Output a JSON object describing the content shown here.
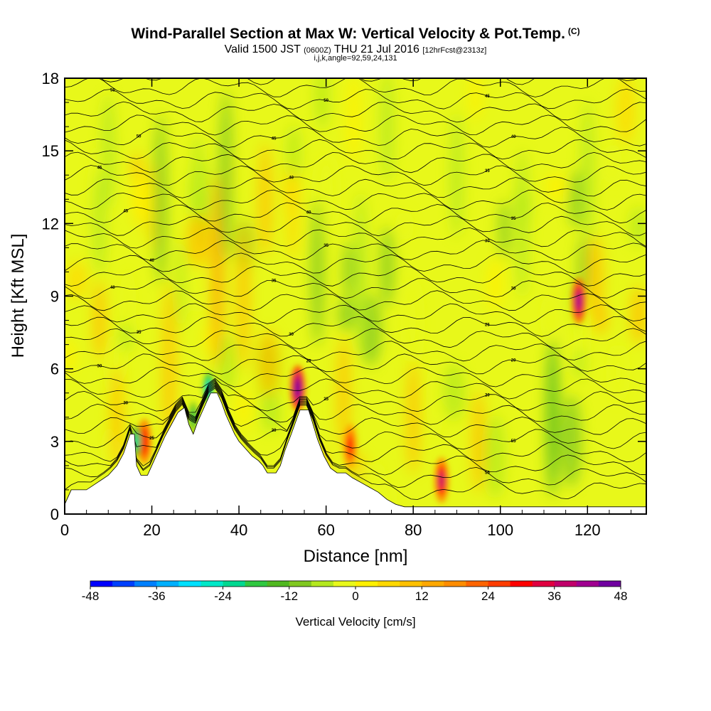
{
  "header": {
    "title": "Wind-Parallel Section at Max W: Vertical Velocity & Pot.Temp.",
    "title_tag": "(C)",
    "valid_main": "Valid 1500 JST",
    "valid_utc": "(0600Z)",
    "valid_date": "THU 21 Jul 2016",
    "forecast": "[12hrFcst@2313z]",
    "indices": "i,j,k,angle=92,59,24,131"
  },
  "chart_data": {
    "type": "heatmap",
    "xlabel": "Distance [nm]",
    "ylabel": "Height [Kft MSL]",
    "xlim": [
      0,
      133.5
    ],
    "ylim": [
      0,
      18
    ],
    "xticks": [
      0,
      20,
      40,
      60,
      80,
      100,
      120
    ],
    "yticks": [
      0,
      3,
      6,
      9,
      12,
      15,
      18
    ],
    "grid": false,
    "background_field": "Vertical Velocity [cm/s]",
    "colorbar": {
      "label": "Vertical Velocity [cm/s]",
      "ticks": [
        -48,
        -36,
        -24,
        -12,
        0,
        12,
        24,
        36,
        48
      ],
      "placement": "bottom",
      "colors": [
        "#0000ff",
        "#0040ff",
        "#0080ff",
        "#00b0ff",
        "#00e0ff",
        "#00e8c8",
        "#00d890",
        "#30c840",
        "#50b820",
        "#80c820",
        "#b4e81e",
        "#e8f81a",
        "#fff000",
        "#ffd800",
        "#ffc000",
        "#ffa800",
        "#ff8c00",
        "#ff6400",
        "#ff3c00",
        "#ff0000",
        "#e00040",
        "#c0006a",
        "#a00090",
        "#7000a0"
      ]
    },
    "terrain": [
      [
        0,
        0.4
      ],
      [
        1.5,
        1.0
      ],
      [
        5,
        1.0
      ],
      [
        7.5,
        1.3
      ],
      [
        10,
        1.6
      ],
      [
        12,
        2.0
      ],
      [
        13.5,
        2.5
      ],
      [
        15,
        3.3
      ],
      [
        16,
        3.3
      ],
      [
        16.5,
        2.0
      ],
      [
        17.5,
        1.6
      ],
      [
        19,
        1.6
      ],
      [
        20,
        2.0
      ],
      [
        21.5,
        2.6
      ],
      [
        23,
        3.2
      ],
      [
        24.5,
        3.7
      ],
      [
        26,
        4.2
      ],
      [
        27.5,
        4.4
      ],
      [
        28.5,
        3.7
      ],
      [
        29.5,
        3.3
      ],
      [
        30.5,
        3.8
      ],
      [
        31.5,
        4.2
      ],
      [
        32.5,
        4.6
      ],
      [
        33.5,
        5.0
      ],
      [
        35,
        5.0
      ],
      [
        36,
        4.6
      ],
      [
        37,
        4.1
      ],
      [
        38,
        3.7
      ],
      [
        39,
        3.3
      ],
      [
        40,
        3.0
      ],
      [
        41.5,
        2.7
      ],
      [
        43,
        2.4
      ],
      [
        44.5,
        2.2
      ],
      [
        45.5,
        2.0
      ],
      [
        46.5,
        1.7
      ],
      [
        48.5,
        1.7
      ],
      [
        49.5,
        2.0
      ],
      [
        50.5,
        2.6
      ],
      [
        52,
        3.3
      ],
      [
        53,
        3.8
      ],
      [
        54,
        4.3
      ],
      [
        56,
        4.3
      ],
      [
        57,
        3.7
      ],
      [
        58,
        3.1
      ],
      [
        59.5,
        2.4
      ],
      [
        61,
        1.9
      ],
      [
        62.5,
        1.7
      ],
      [
        64.5,
        1.7
      ],
      [
        66,
        1.5
      ],
      [
        68,
        1.3
      ],
      [
        70,
        1.1
      ],
      [
        72,
        0.9
      ],
      [
        74,
        0.6
      ],
      [
        76,
        0.4
      ],
      [
        78,
        0.3
      ],
      [
        133.5,
        0.3
      ]
    ],
    "potential_temperature_label_values": [
      "55",
      "50",
      "45",
      "40",
      "35",
      "30",
      "25",
      "20"
    ],
    "w_maxima": [
      {
        "x": 53.5,
        "z": 5.2,
        "w": 48
      },
      {
        "x": 118,
        "z": 8.8,
        "w": 40
      },
      {
        "x": 86.5,
        "z": 1.4,
        "w": 36
      },
      {
        "x": 18.3,
        "z": 3.0,
        "w": 30
      },
      {
        "x": 65.5,
        "z": 2.8,
        "w": 28
      }
    ],
    "w_minima": [
      {
        "x": 16.5,
        "z": 3.0,
        "w": -24
      },
      {
        "x": 33,
        "z": 5.2,
        "w": -28
      },
      {
        "x": 29.5,
        "z": 4.0,
        "w": -20
      }
    ]
  }
}
